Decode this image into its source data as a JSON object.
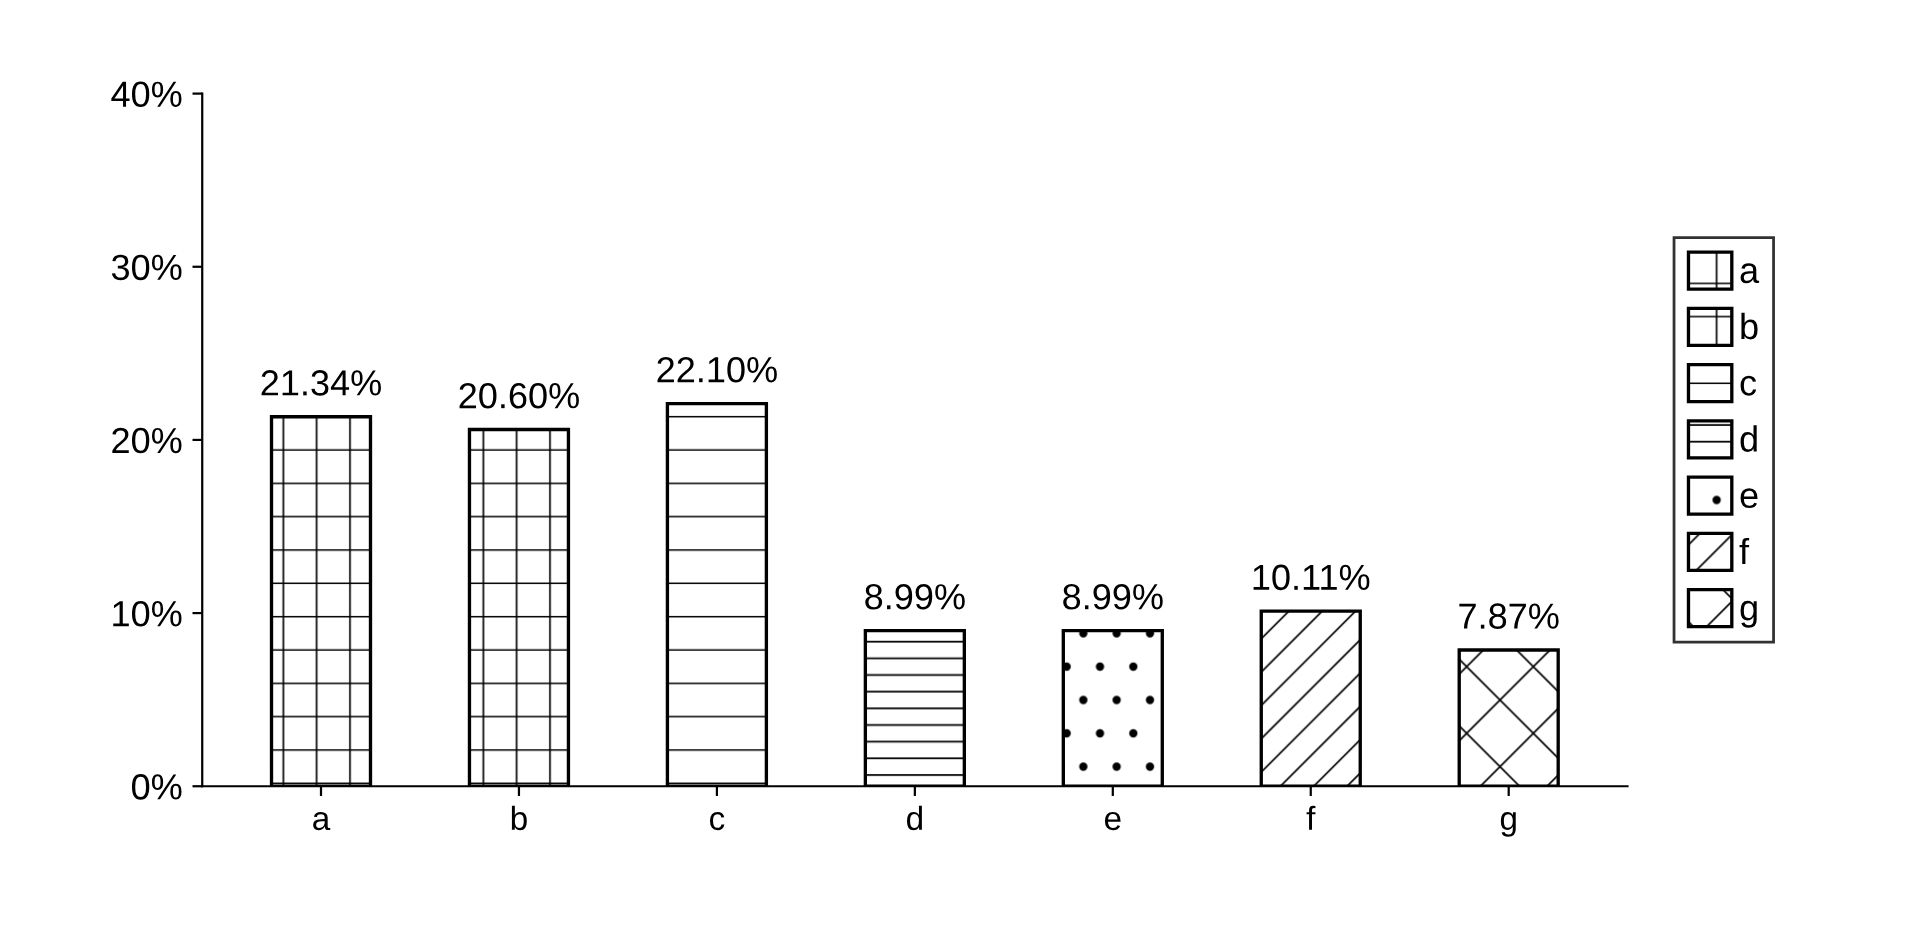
{
  "chart_data": {
    "type": "bar",
    "categories": [
      "a",
      "b",
      "c",
      "d",
      "e",
      "f",
      "g"
    ],
    "series": [
      {
        "name": "a",
        "color": "#000000",
        "values": [
          21.34,
          null,
          null,
          null,
          null,
          null,
          null
        ],
        "value_labels": [
          "21.34%",
          null,
          null,
          null,
          null,
          null,
          null
        ]
      },
      {
        "name": "b",
        "color": "#000000",
        "values": [
          null,
          20.6,
          null,
          null,
          null,
          null,
          null
        ],
        "value_labels": [
          null,
          "20.60%",
          null,
          null,
          null,
          null,
          null
        ]
      },
      {
        "name": "c",
        "color": "#000000",
        "values": [
          null,
          null,
          22.1,
          null,
          null,
          null,
          null
        ],
        "value_labels": [
          null,
          null,
          "22.10%",
          null,
          null,
          null,
          null
        ]
      },
      {
        "name": "d",
        "color": "#000000",
        "values": [
          null,
          null,
          null,
          8.99,
          null,
          null,
          null
        ],
        "value_labels": [
          null,
          null,
          null,
          "8.99%",
          null,
          null,
          null
        ]
      },
      {
        "name": "e",
        "color": "#000000",
        "values": [
          null,
          null,
          null,
          null,
          8.99,
          null,
          null
        ],
        "value_labels": [
          null,
          null,
          null,
          null,
          "8.99%",
          null,
          null
        ]
      },
      {
        "name": "f",
        "color": "#000000",
        "values": [
          null,
          null,
          null,
          null,
          null,
          10.11,
          null
        ],
        "value_labels": [
          null,
          null,
          null,
          null,
          null,
          "10.11%",
          null
        ]
      },
      {
        "name": "g",
        "color": "#000000",
        "values": [
          null,
          null,
          null,
          null,
          null,
          null,
          7.87
        ],
        "value_labels": [
          null,
          null,
          null,
          null,
          null,
          null,
          "7.87%"
        ]
      }
    ],
    "ylim": [
      0,
      40
    ],
    "yticks": [
      {
        "value": 0,
        "label": "0%"
      },
      {
        "value": 10,
        "label": "10%"
      },
      {
        "value": 20,
        "label": "20%"
      },
      {
        "value": 30,
        "label": "30%"
      },
      {
        "value": 40,
        "label": "40%"
      }
    ],
    "grid": false,
    "legend": "right"
  }
}
